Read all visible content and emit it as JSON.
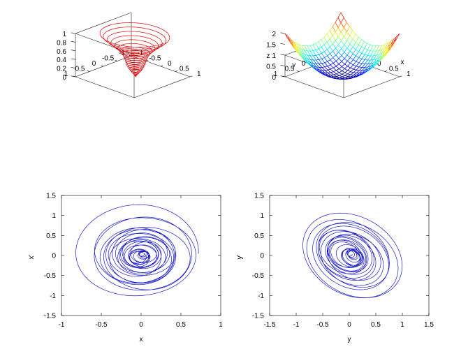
{
  "chart_data": [
    {
      "type": "line3d",
      "panel": "top-left",
      "title": "",
      "xlabel": "",
      "ylabel": "",
      "zlabel": "",
      "xlim": [
        -1,
        1
      ],
      "ylim": [
        -1,
        1
      ],
      "zlim": [
        0,
        1
      ],
      "xticks": [
        "-1",
        "-0.5",
        "0",
        "0.5",
        "1"
      ],
      "yticks": [
        "-1",
        "-0.5",
        "0",
        "0.5",
        "1"
      ],
      "zticks": [
        "0",
        "0.2",
        "0.4",
        "0.6",
        "0.8",
        "1"
      ],
      "series": [
        {
          "color": "#e00000",
          "description_points": {
            "x": [
              0.0,
              0.5,
              0.0,
              -0.45,
              0.0,
              0.35,
              0.0,
              -0.25,
              0.0,
              0.12,
              0.0
            ],
            "y": [
              -0.9,
              0.0,
              0.75,
              0.0,
              -0.55,
              0.0,
              0.4,
              0.0,
              -0.2,
              0.0,
              0.0
            ],
            "z": [
              0.95,
              0.85,
              0.7,
              0.55,
              0.42,
              0.3,
              0.2,
              0.12,
              0.06,
              0.02,
              0.0
            ]
          }
        }
      ]
    },
    {
      "type": "surface",
      "panel": "top-right",
      "title": "",
      "xlabel": "x",
      "ylabel": "y",
      "zlabel": "z",
      "xlim": [
        -1,
        1
      ],
      "ylim": [
        -1,
        1
      ],
      "zlim": [
        0,
        2
      ],
      "xticks": [
        "-1",
        "-0.5",
        "0",
        "0.5",
        "1"
      ],
      "yticks": [
        "-1",
        "-0.5",
        "0",
        "0.5",
        "1"
      ],
      "zticks": [
        "0",
        "0.5",
        "1",
        "1.5",
        "2"
      ],
      "function": "z = x^2 + y^2",
      "colormap": "jet"
    },
    {
      "type": "line",
      "panel": "bottom-left",
      "title": "",
      "xlabel": "x",
      "ylabel": "x'",
      "xlim": [
        -1,
        1
      ],
      "ylim": [
        -1.5,
        1.5
      ],
      "xticks": [
        "-1",
        "-0.5",
        "0",
        "0.5",
        "1"
      ],
      "yticks": [
        "-1.5",
        "-1",
        "-0.5",
        "0",
        "0.5",
        "1",
        "1.5"
      ],
      "grid": false,
      "series": [
        {
          "color": "#1818c8"
        }
      ]
    },
    {
      "type": "line",
      "panel": "bottom-right",
      "title": "",
      "xlabel": "y",
      "ylabel": "y'",
      "xlim": [
        -1.5,
        1.5
      ],
      "ylim": [
        -1.5,
        1.5
      ],
      "xticks": [
        "-1.5",
        "-1",
        "-0.5",
        "0",
        "0.5",
        "1",
        "1.5"
      ],
      "yticks": [
        "-1.5",
        "-1",
        "-0.5",
        "0",
        "0.5",
        "1",
        "1.5"
      ],
      "grid": false,
      "series": [
        {
          "color": "#1818c8"
        }
      ]
    }
  ]
}
